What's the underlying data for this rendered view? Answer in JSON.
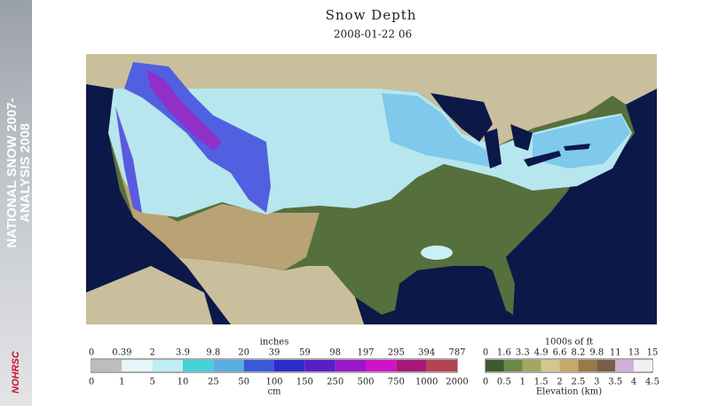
{
  "banner": {
    "line1": "NATIONAL SNOW 2007-",
    "line2": "ANALYSIS 2008",
    "logo": "NOHRSC"
  },
  "header": {
    "title": "Snow Depth",
    "date": "2008-01-22 06"
  },
  "legend": {
    "snow": {
      "top_unit": "inches",
      "bottom_unit": "cm",
      "top_labels": [
        "0",
        "0.39",
        "2",
        "3.9",
        "9.8",
        "20",
        "39",
        "59",
        "98",
        "197",
        "295",
        "394",
        "787"
      ],
      "bottom_labels": [
        "0",
        "1",
        "5",
        "10",
        "25",
        "50",
        "100",
        "150",
        "250",
        "500",
        "750",
        "1000",
        "2000"
      ]
    },
    "elevation": {
      "top_unit": "1000s of ft",
      "bottom_unit": "Elevation (km)",
      "top_labels": [
        "0",
        "1.6",
        "3.3",
        "4.9",
        "6.6",
        "8.2",
        "9.8",
        "11",
        "13",
        "15"
      ],
      "bottom_labels": [
        "0",
        "0.5",
        "1",
        "1.5",
        "2",
        "2.5",
        "3",
        "3.5",
        "4",
        "4.5"
      ]
    }
  }
}
